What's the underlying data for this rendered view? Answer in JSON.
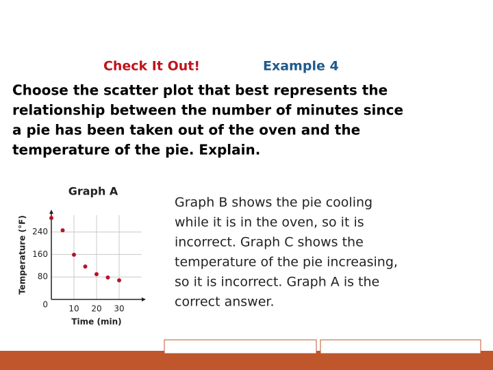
{
  "header": {
    "title_red": "Check It Out!",
    "title_blue": "Example 4"
  },
  "question": [
    "Choose the scatter plot that best represents the",
    "relationship between the number of minutes since",
    "a pie has been taken out of the oven and the",
    "temperature of the pie. Explain."
  ],
  "chart_data": {
    "type": "scatter",
    "title": "Graph A",
    "x_label": "Time (min)",
    "y_label": "Temperature (°F)",
    "x": [
      0,
      5,
      10,
      15,
      20,
      25,
      30
    ],
    "values": [
      290,
      246,
      159,
      117,
      90,
      78,
      68
    ],
    "color": "#b5152b",
    "xlim": [
      0,
      40
    ],
    "ylim": [
      0,
      300
    ],
    "xticks": [
      10,
      20,
      30
    ],
    "yticks": [
      0,
      80,
      160,
      240
    ],
    "grid": true
  },
  "explanation": [
    "Graph B shows the pie cooling",
    "while it is in the oven, so it is",
    "incorrect. Graph C shows the",
    "temperature of the pie increasing,",
    "so it is incorrect. Graph A is the",
    "correct answer."
  ]
}
